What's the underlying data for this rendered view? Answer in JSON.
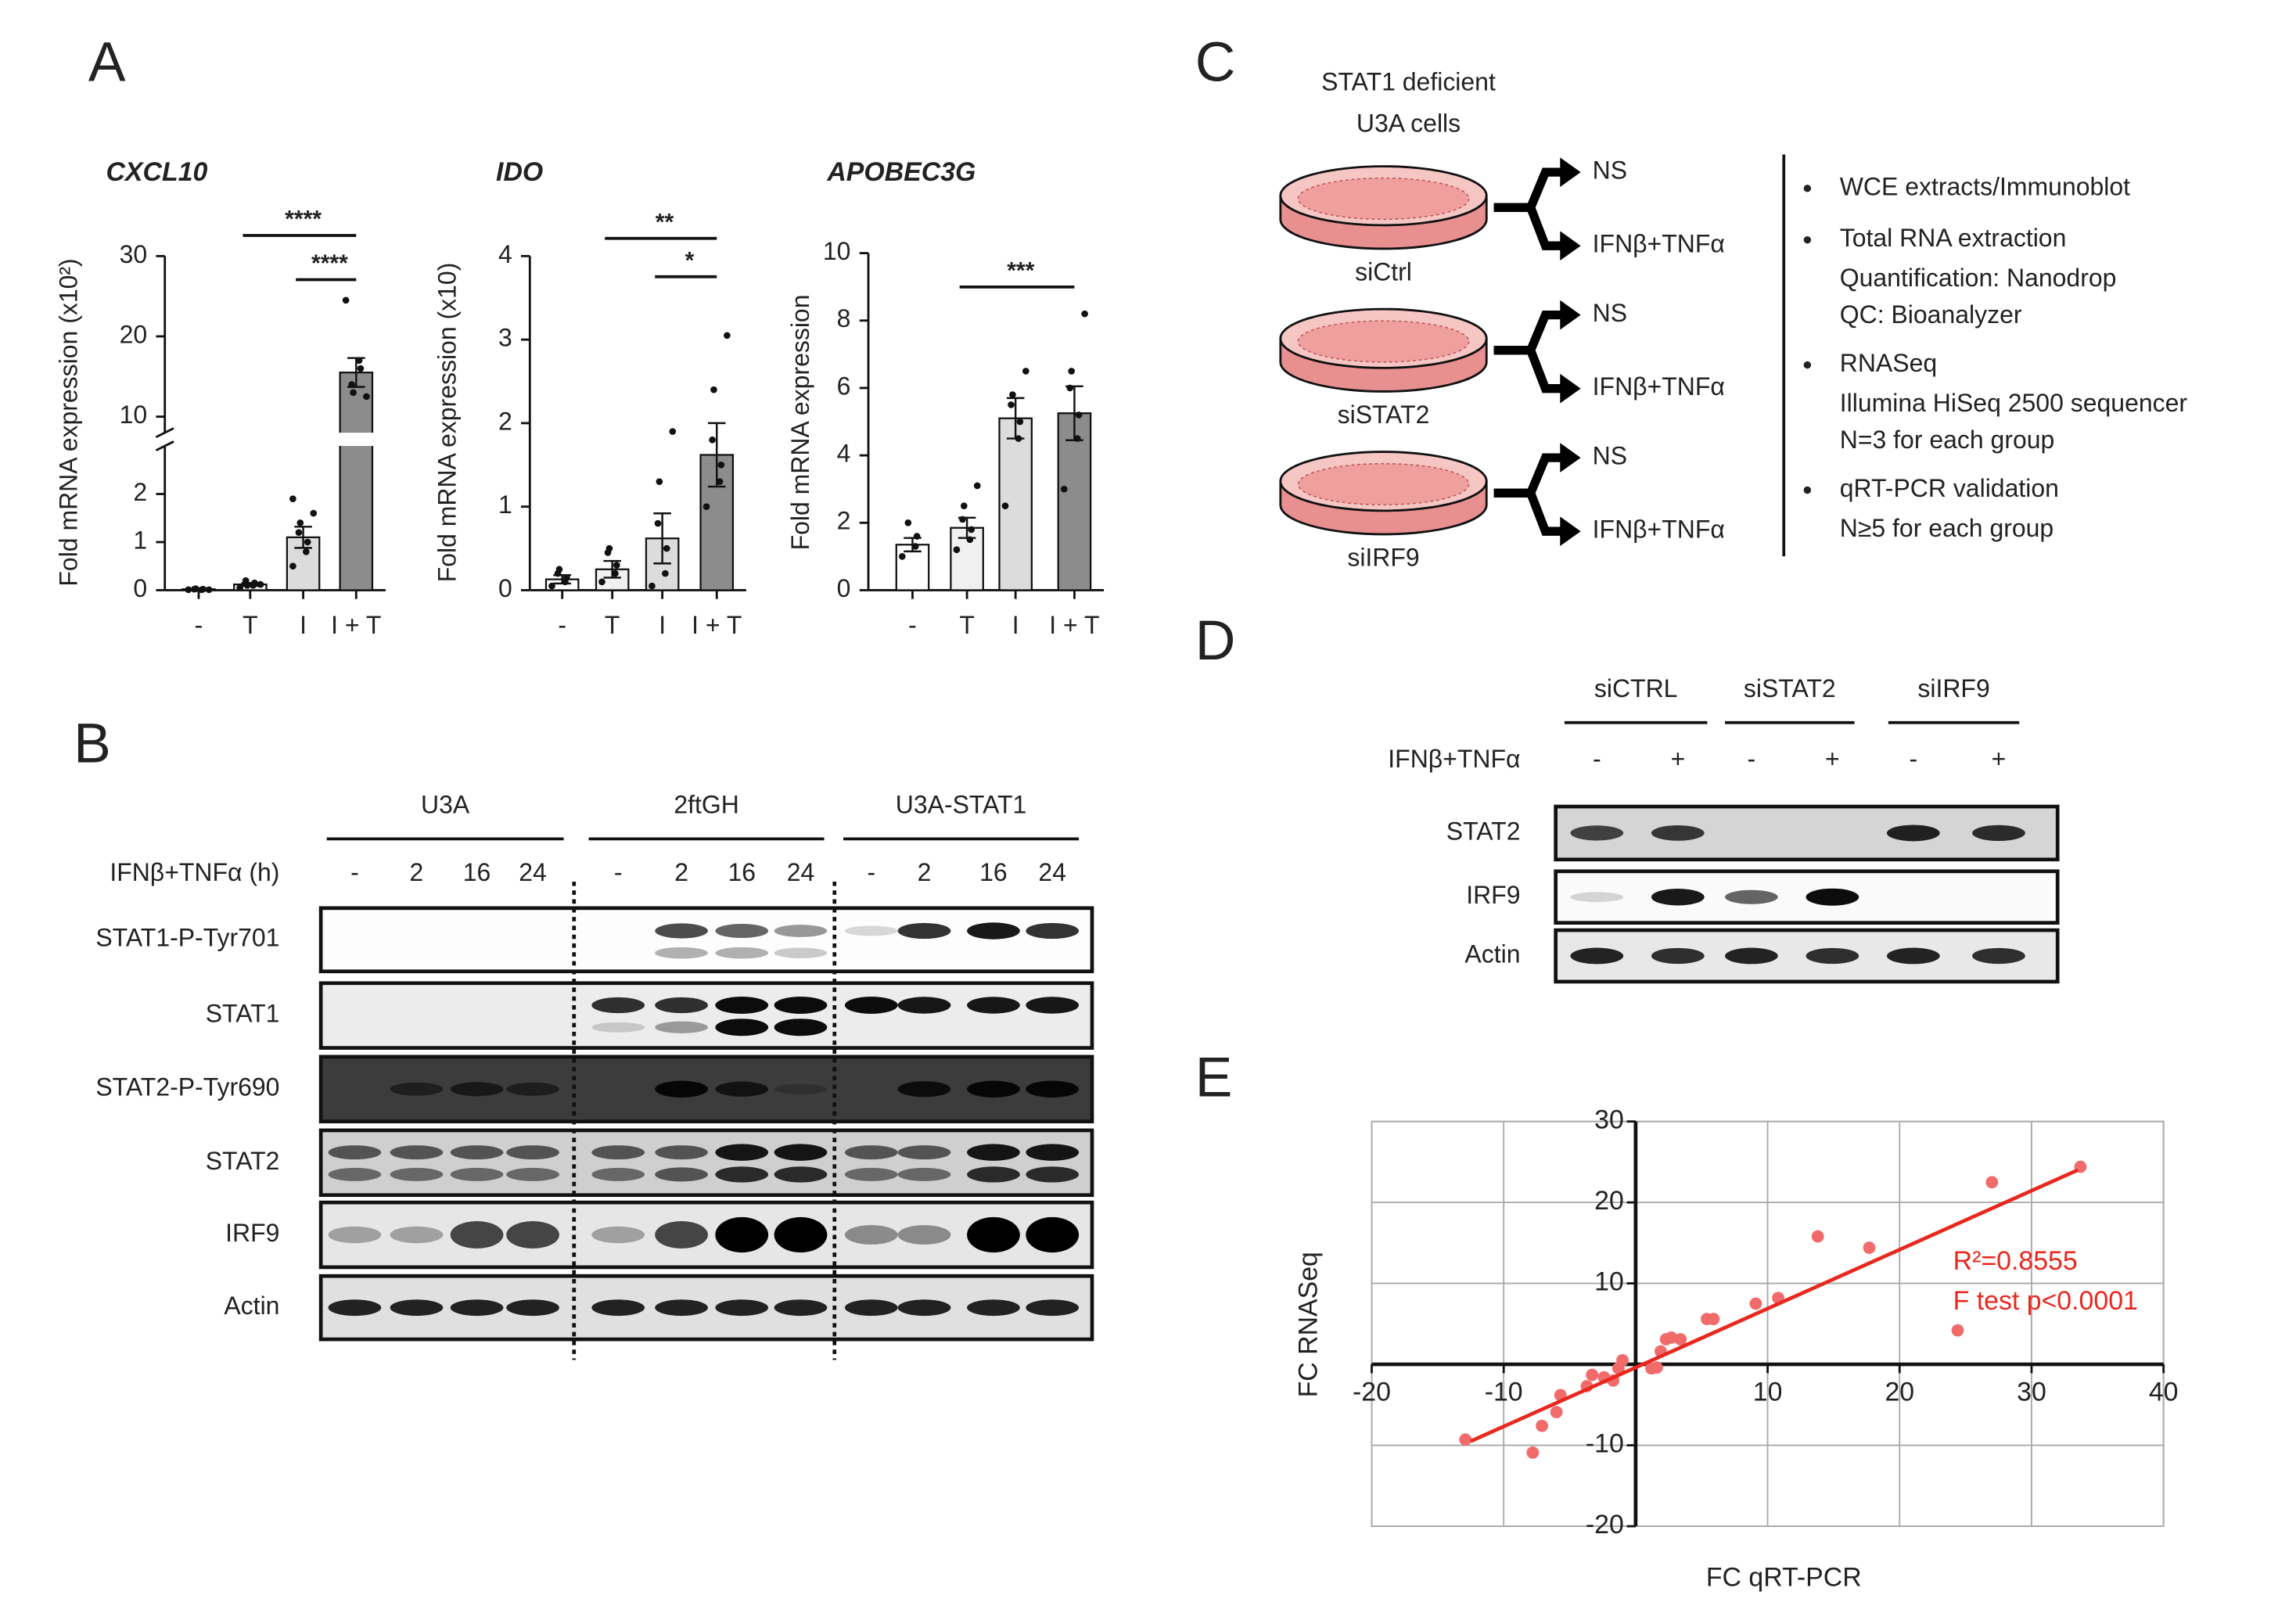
{
  "panel_labels": [
    "A",
    "B",
    "C",
    "D",
    "E"
  ],
  "chart_data": [
    {
      "type": "bar",
      "title": "CXCL10",
      "ylabel": "Fold mRNA expression (x10²)",
      "categories": [
        "-",
        "T",
        "I",
        "I + T"
      ],
      "values": [
        0.02,
        0.12,
        1.1,
        15.5
      ],
      "errors": [
        0.01,
        0.03,
        0.22,
        1.8
      ],
      "points": [
        [
          0.01,
          0.01,
          0.02,
          0.02,
          0.03,
          0.01
        ],
        [
          0.05,
          0.1,
          0.15,
          0.2,
          0.1,
          0.12
        ],
        [
          0.5,
          0.8,
          1.0,
          1.2,
          1.4,
          1.6,
          1.9
        ],
        [
          24.5,
          17,
          16,
          14,
          13,
          12.5
        ]
      ],
      "colors": [
        "#ffffff",
        "#f0f0f0",
        "#dcdcdc",
        "#8c8c8c"
      ],
      "ylim": [
        0,
        30
      ],
      "axis_break": [
        3,
        8
      ],
      "yticks": [
        0,
        1,
        2,
        10,
        20,
        30
      ],
      "significance": [
        {
          "from": "T",
          "to": "I + T",
          "label": "****"
        },
        {
          "from": "I",
          "to": "I + T",
          "label": "****"
        }
      ]
    },
    {
      "type": "bar",
      "title": "IDO",
      "ylabel": "Fold mRNA expression (x10)",
      "categories": [
        "-",
        "T",
        "I",
        "I + T"
      ],
      "values": [
        0.13,
        0.25,
        0.62,
        1.62
      ],
      "errors": [
        0.05,
        0.1,
        0.3,
        0.38
      ],
      "points": [
        [
          0.05,
          0.1,
          0.15,
          0.2,
          0.25
        ],
        [
          0.1,
          0.2,
          0.3,
          0.45,
          0.5
        ],
        [
          0.05,
          0.2,
          0.5,
          0.8,
          1.3,
          1.9
        ],
        [
          1.0,
          1.3,
          1.5,
          1.8,
          2.4,
          3.05
        ]
      ],
      "colors": [
        "#ffffff",
        "#f0f0f0",
        "#dcdcdc",
        "#8c8c8c"
      ],
      "ylim": [
        0,
        4
      ],
      "yticks": [
        0,
        1,
        2,
        3,
        4
      ],
      "significance": [
        {
          "from": "T",
          "to": "I + T",
          "label": "**"
        },
        {
          "from": "I",
          "to": "I + T",
          "label": "*"
        }
      ]
    },
    {
      "type": "bar",
      "title": "APOBEC3G",
      "ylabel": "Fold mRNA expression",
      "categories": [
        "-",
        "T",
        "I",
        "I + T"
      ],
      "values": [
        1.35,
        1.85,
        5.1,
        5.25
      ],
      "errors": [
        0.2,
        0.3,
        0.6,
        0.8
      ],
      "points": [
        [
          1.0,
          1.3,
          1.6,
          2.0
        ],
        [
          1.2,
          1.5,
          1.8,
          2.1,
          2.5,
          3.1
        ],
        [
          2.5,
          4.5,
          5.0,
          5.5,
          5.8,
          6.5
        ],
        [
          3.0,
          4.5,
          5.2,
          6.0,
          6.5,
          8.2
        ]
      ],
      "colors": [
        "#ffffff",
        "#f0f0f0",
        "#dcdcdc",
        "#8c8c8c"
      ],
      "ylim": [
        0,
        10
      ],
      "yticks": [
        0,
        2,
        4,
        6,
        8,
        10
      ],
      "significance": [
        {
          "from": "T",
          "to": "I + T",
          "label": "***"
        }
      ]
    },
    {
      "type": "scatter",
      "xlabel": "FC qRT-PCR",
      "ylabel": "FC RNASeq",
      "color": "#f26b6b",
      "x": [
        -12.9,
        -7.8,
        -7.1,
        -6.0,
        -5.7,
        -3.7,
        -3.3,
        -2.4,
        -1.7,
        -1.3,
        -1.0,
        1.2,
        1.6,
        1.9,
        2.3,
        2.7,
        3.4,
        5.4,
        5.9,
        9.1,
        10.8,
        13.8,
        17.7,
        24.4,
        27.0,
        33.7
      ],
      "y": [
        -9.3,
        -10.9,
        -7.6,
        -5.9,
        -3.8,
        -2.7,
        -1.3,
        -1.6,
        -2.0,
        -0.5,
        0.5,
        -0.5,
        -0.4,
        1.6,
        3.1,
        3.3,
        3.1,
        5.6,
        5.6,
        7.5,
        8.2,
        15.8,
        14.4,
        4.2,
        22.5,
        24.4
      ],
      "fit_line": {
        "x": [
          -12.5,
          33.5
        ],
        "y": [
          -9.5,
          24
        ]
      },
      "xlim": [
        -20,
        40
      ],
      "ylim": [
        -20,
        30
      ],
      "xticks": [
        -20,
        -10,
        10,
        20,
        30,
        40
      ],
      "yticks": [
        -20,
        -10,
        10,
        20,
        30
      ],
      "grid": true,
      "annotations": [
        "R²=0.8555",
        "F test p<0.0001"
      ]
    }
  ],
  "blot_b": {
    "treatment_label": "IFNβ+TNFα (h)",
    "groups": [
      {
        "name": "U3A",
        "lanes": [
          "-",
          "2",
          "16",
          "24"
        ]
      },
      {
        "name": "2ftGH",
        "lanes": [
          "-",
          "2",
          "16",
          "24"
        ]
      },
      {
        "name": "U3A-STAT1",
        "lanes": [
          "-",
          "2",
          "16",
          "24"
        ]
      }
    ],
    "rows": [
      "STAT1-P-Tyr701",
      "STAT1",
      "STAT2-P-Tyr690",
      "STAT2",
      "IRF9",
      "Actin"
    ]
  },
  "diagram_c": {
    "title": [
      "STAT1 deficient",
      "U3A cells"
    ],
    "conditions": [
      {
        "label": "siCtrl",
        "outputs": [
          "NS",
          "IFNβ+TNFα"
        ]
      },
      {
        "label": "siSTAT2",
        "outputs": [
          "NS",
          "IFNβ+TNFα"
        ]
      },
      {
        "label": "siIRF9",
        "outputs": [
          "NS",
          "IFNβ+TNFα"
        ]
      }
    ],
    "steps": [
      {
        "title": "WCE extracts/Immunoblot",
        "details": []
      },
      {
        "title": "Total RNA extraction",
        "details": [
          "Quantification: Nanodrop",
          "QC: Bioanalyzer"
        ]
      },
      {
        "title": "RNASeq",
        "details": [
          "Illumina HiSeq 2500 sequencer",
          "N=3 for each group"
        ]
      },
      {
        "title": "qRT-PCR validation",
        "details": [
          "N≥5 for each group"
        ]
      }
    ]
  },
  "blot_d": {
    "treatment_label": "IFNβ+TNFα",
    "groups": [
      {
        "name": "siCTRL",
        "lanes": [
          "-",
          "+"
        ]
      },
      {
        "name": "siSTAT2",
        "lanes": [
          "-",
          "+"
        ]
      },
      {
        "name": "siIRF9",
        "lanes": [
          "-",
          "+"
        ]
      }
    ],
    "rows": [
      "STAT2",
      "IRF9",
      "Actin"
    ]
  }
}
